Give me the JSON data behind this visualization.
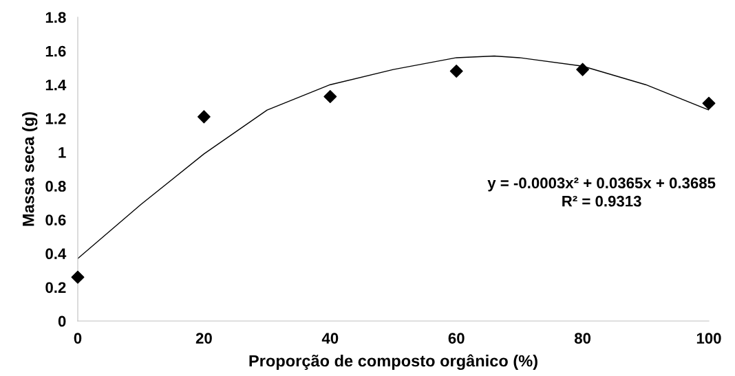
{
  "chart_data": {
    "type": "scatter",
    "xlabel": "Proporção de composto orgânico (%)",
    "ylabel": "Massa seca (g)",
    "xlim": [
      0,
      100
    ],
    "xticks": [
      0,
      20,
      40,
      60,
      80,
      100
    ],
    "ylim": [
      0,
      1.8
    ],
    "yticks": [
      0,
      0.2,
      0.4,
      0.6,
      0.8,
      1,
      1.2,
      1.4,
      1.6,
      1.8
    ],
    "grid": false,
    "legend": false,
    "marker": "diamond",
    "series": [
      {
        "color": "#000000",
        "x": [
          0,
          20,
          40,
          60,
          80,
          100
        ],
        "values": [
          0.26,
          1.21,
          1.33,
          1.48,
          1.49,
          1.29
        ]
      },
      {
        "type": "line",
        "color": "#000000",
        "marker": "none",
        "line_style": "solid",
        "x": [
          0,
          10,
          20,
          30,
          40,
          50,
          60,
          66,
          70,
          80,
          90,
          100
        ],
        "values": [
          0.37,
          0.69,
          0.99,
          1.25,
          1.4,
          1.49,
          1.56,
          1.57,
          1.56,
          1.51,
          1.4,
          1.25
        ]
      }
    ],
    "annotations": [
      "y = -0.0003x² + 0.0365x + 0.3685",
      "R² = 0.9313"
    ]
  }
}
